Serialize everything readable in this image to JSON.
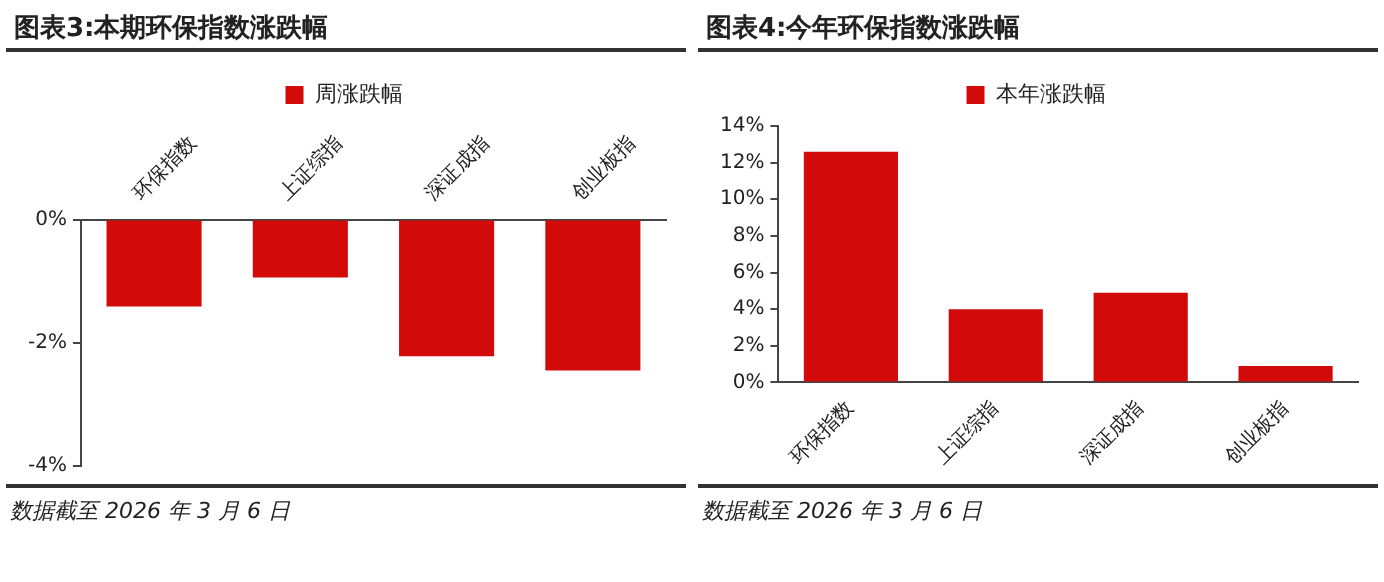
{
  "chart_data": [
    {
      "type": "bar",
      "title": "图表3:本期环保指数涨跌幅",
      "categories": [
        "环保指数",
        "上证综指",
        "深证成指",
        "创业板指"
      ],
      "series": [
        {
          "name": "周涨跌幅",
          "color": "#d20a0a",
          "values": [
            -1.41,
            -0.94,
            -2.22,
            -2.45
          ]
        }
      ],
      "ylim": [
        -4,
        0
      ],
      "yticks": [
        {
          "value": -4,
          "label": "-4%"
        },
        {
          "value": -2,
          "label": "-2%"
        },
        {
          "value": 0,
          "label": "0%"
        }
      ],
      "legend": "top",
      "annotations": [
        "数据截至 2026 年 3 月 6 日"
      ]
    },
    {
      "type": "bar",
      "title": "图表4:今年环保指数涨跌幅",
      "categories": [
        "环保指数",
        "上证综指",
        "深证成指",
        "创业板指"
      ],
      "series": [
        {
          "name": "本年涨跌幅",
          "color": "#d20a0a",
          "values": [
            12.6,
            4.0,
            4.9,
            0.9
          ]
        }
      ],
      "ylim": [
        0,
        14
      ],
      "yticks": [
        {
          "value": 0,
          "label": "0%"
        },
        {
          "value": 2,
          "label": "2%"
        },
        {
          "value": 4,
          "label": "4%"
        },
        {
          "value": 6,
          "label": "6%"
        },
        {
          "value": 8,
          "label": "8%"
        },
        {
          "value": 10,
          "label": "10%"
        },
        {
          "value": 12,
          "label": "12%"
        },
        {
          "value": 14,
          "label": "14%"
        }
      ],
      "legend": "top",
      "annotations": [
        "数据截至 2026 年 3 月 6 日"
      ]
    }
  ]
}
